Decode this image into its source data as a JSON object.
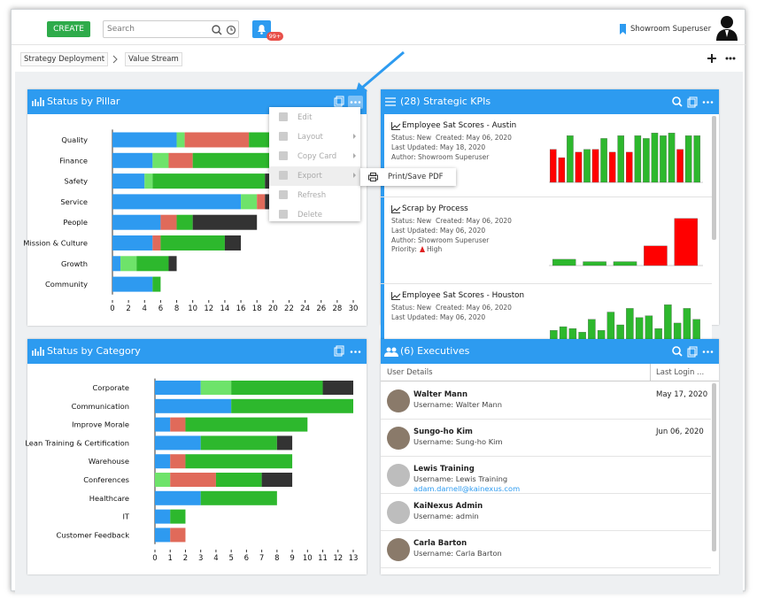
{
  "toolbar": {
    "create": "CREATE",
    "search": "Search",
    "badge": "99+",
    "user": "Showroom Superuser"
  },
  "breadcrumbs": [
    "Strategy Deployment",
    "Value Stream"
  ],
  "status_by_pillar": {
    "title": "Status by Pillar",
    "categories": [
      "Quality",
      "Finance",
      "Safety",
      "Service",
      "People",
      "Mission & Culture",
      "Growth",
      "Community"
    ],
    "series": [
      {
        "color": "#2e9af0",
        "values": [
          8,
          5,
          4,
          16,
          6,
          5,
          1,
          5
        ]
      },
      {
        "color": "#6ee36a",
        "values": [
          1,
          2,
          1,
          2,
          0,
          0,
          2,
          0
        ]
      },
      {
        "color": "#e06a5a",
        "values": [
          8,
          3,
          0,
          1,
          2,
          1,
          0,
          0
        ]
      },
      {
        "color": "#2db82d",
        "values": [
          4,
          10,
          14,
          0,
          2,
          8,
          4,
          1
        ]
      },
      {
        "color": "#333333",
        "values": [
          0,
          0,
          1,
          1,
          8,
          2,
          1,
          0
        ]
      }
    ],
    "xlim": [
      0,
      30
    ],
    "xticks": [
      0,
      2,
      4,
      6,
      8,
      10,
      12,
      14,
      16,
      18,
      20,
      22,
      24,
      26,
      28,
      30
    ]
  },
  "menu": {
    "items": [
      "Edit",
      "Layout",
      "Copy Card",
      "Export",
      "Refresh",
      "Delete"
    ],
    "submenu": [
      "Print/Save PDF"
    ]
  },
  "strategic_kpis": {
    "title": "(28) Strategic KPIs",
    "cards": [
      {
        "title": "Employee Sat Scores - Austin",
        "status": "Status: New",
        "created": "Created: May 06, 2020",
        "updated": "Last Updated: May 18, 2020",
        "author": "Author: Showroom Superuser",
        "chart": {
          "ylim": [
            0,
            100
          ],
          "values": [
            60,
            45,
            85,
            55,
            60,
            60,
            80,
            55,
            85,
            55,
            85,
            80,
            90,
            85,
            90,
            60,
            85,
            85
          ],
          "colors": [
            "#f00",
            "#f00",
            "#2db82d",
            "#f00",
            "#2db82d",
            "#f00",
            "#2db82d",
            "#f00",
            "#2db82d",
            "#f00",
            "#2db82d",
            "#2db82d",
            "#2db82d",
            "#2db82d",
            "#2db82d",
            "#f00",
            "#2db82d",
            "#2db82d"
          ]
        }
      },
      {
        "title": "Scrap by Process",
        "status": "Status: New",
        "created": "Created: May 06, 2020",
        "updated": "Last Updated: May 06, 2020",
        "author": "Author: Showroom Superuser",
        "priority": "Priority:",
        "priority_value": "High",
        "chart": {
          "ylim": [
            0,
            70
          ],
          "values": [
            8,
            5,
            5,
            25,
            60
          ],
          "colors": [
            "#2db82d",
            "#2db82d",
            "#2db82d",
            "#f00",
            "#f00"
          ]
        }
      },
      {
        "title": "Employee Sat Scores - Houston",
        "status": "Status: New",
        "created": "Created: May 06, 2020",
        "updated": "Last Updated: May 06, 2020",
        "chart": {
          "ylim": [
            60,
            90
          ],
          "values": [
            72,
            74,
            73,
            71,
            78,
            72,
            82,
            75,
            84,
            79,
            80,
            73,
            86,
            76,
            84,
            78
          ],
          "colors": [
            "#2db82d",
            "#2db82d",
            "#2db82d",
            "#2db82d",
            "#2db82d",
            "#2db82d",
            "#2db82d",
            "#2db82d",
            "#2db82d",
            "#2db82d",
            "#2db82d",
            "#2db82d",
            "#2db82d",
            "#2db82d",
            "#2db82d",
            "#2db82d"
          ]
        }
      }
    ]
  },
  "status_by_category": {
    "title": "Status by Category",
    "categories": [
      "Corporate",
      "Communication",
      "Improve Morale",
      "Lean Training & Certification",
      "Warehouse",
      "Conferences",
      "Healthcare",
      "IT",
      "Customer Feedback"
    ],
    "series": [
      {
        "color": "#2e9af0",
        "values": [
          3,
          5,
          1,
          3,
          1,
          0,
          3,
          1,
          1
        ]
      },
      {
        "color": "#6ee36a",
        "values": [
          2,
          0,
          0,
          0,
          0,
          1,
          0,
          0,
          0
        ]
      },
      {
        "color": "#e06a5a",
        "values": [
          0,
          0,
          1,
          0,
          1,
          3,
          0,
          0,
          1
        ]
      },
      {
        "color": "#2db82d",
        "values": [
          6,
          8,
          8,
          5,
          7,
          3,
          5,
          1,
          0
        ]
      },
      {
        "color": "#333333",
        "values": [
          2,
          0,
          0,
          1,
          0,
          2,
          0,
          0,
          0
        ]
      }
    ],
    "xlim": [
      0,
      13
    ],
    "xticks": [
      0,
      1,
      2,
      3,
      4,
      5,
      6,
      7,
      8,
      9,
      10,
      11,
      12,
      13
    ]
  },
  "executives": {
    "title": "(6) Executives",
    "columns": [
      "User Details",
      "Last Login ..."
    ],
    "users": [
      {
        "name": "Walter Mann",
        "username": "Username: Walter Mann",
        "last_login": "May 17, 2020"
      },
      {
        "name": "Sungo-ho Kim",
        "username": "Username: Sung-ho Kim",
        "last_login": "Jun 06, 2020"
      },
      {
        "name": "Lewis Training",
        "username": "Username: Lewis Training",
        "email": "adam.darnell@kainexus.com"
      },
      {
        "name": "KaiNexus Admin",
        "username": "Username: admin"
      },
      {
        "name": "Carla Barton",
        "username": "Username: Carla Barton"
      }
    ]
  }
}
